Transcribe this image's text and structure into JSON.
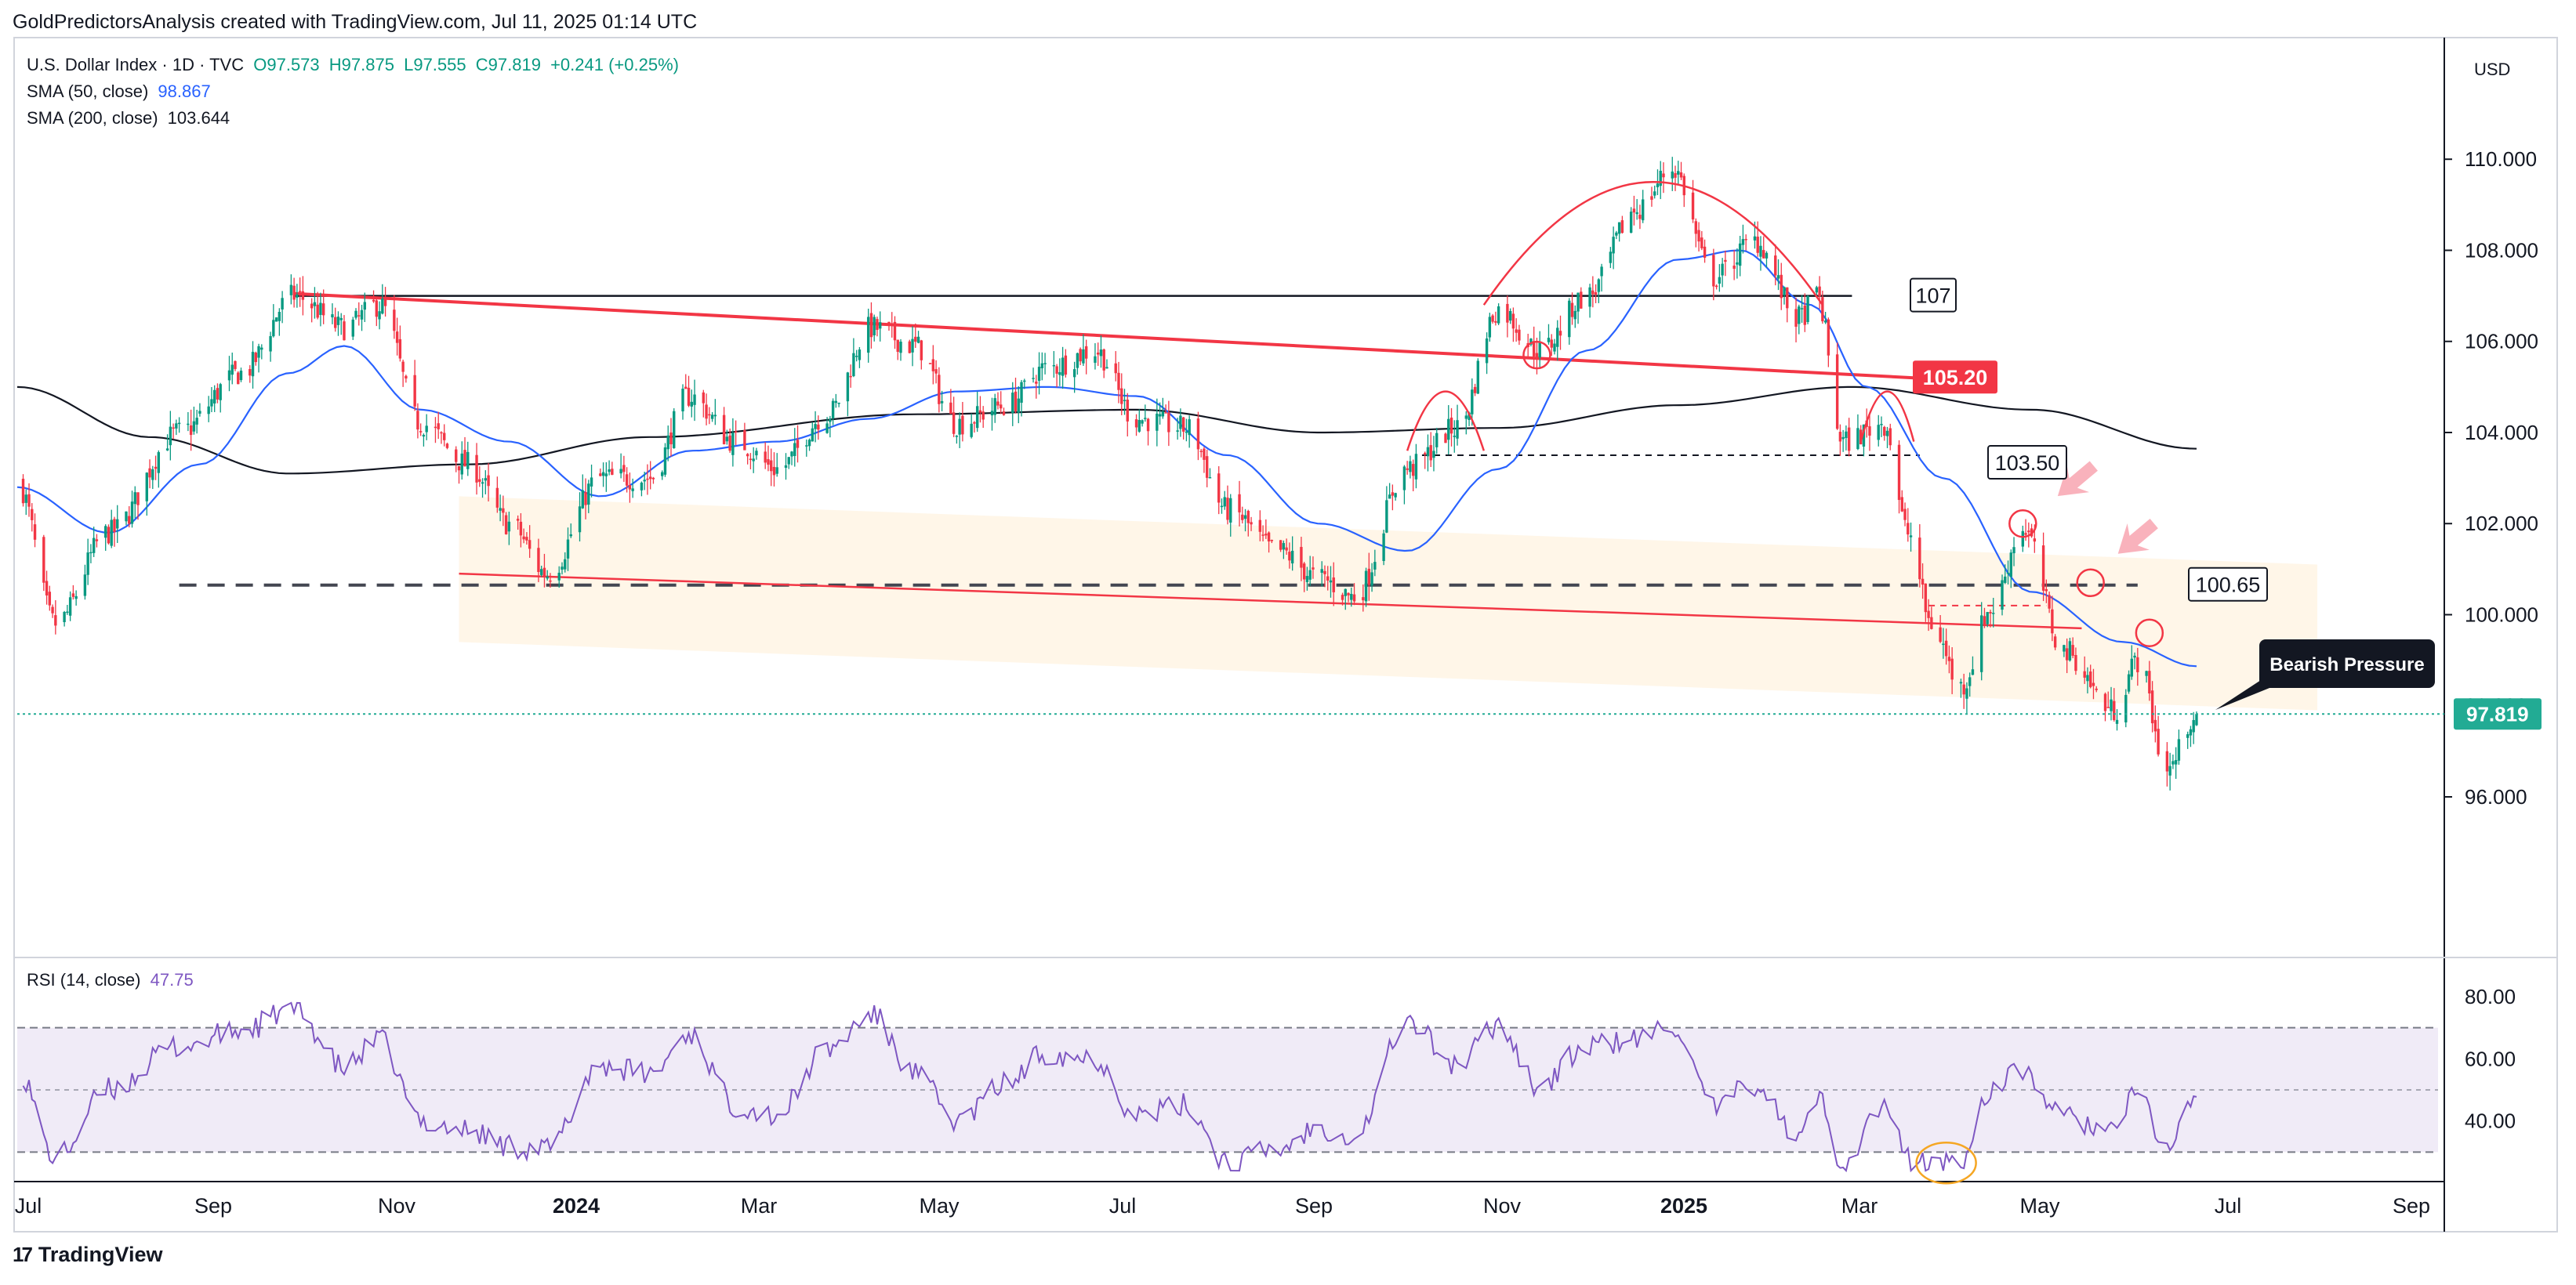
{
  "header": {
    "credit": "GoldPredictorsAnalysis created with TradingView.com, Jul 11, 2025 01:14 UTC"
  },
  "legend": {
    "symbol": "U.S. Dollar Index · 1D · TVC",
    "open": "O97.573",
    "high": "H97.875",
    "low": "L97.555",
    "close": "C97.819",
    "change": "+0.241 (+0.25%)",
    "sma50_label": "SMA (50, close)",
    "sma50_value": "98.867",
    "sma200_label": "SMA (200, close)",
    "sma200_value": "103.644",
    "rsi_label": "RSI (14, close)",
    "rsi_value": "47.75"
  },
  "price_axis": {
    "currency": "USD",
    "ticks": [
      "110.000",
      "108.000",
      "106.000",
      "104.000",
      "102.000",
      "100.000",
      "96.000"
    ],
    "last_price": "97.819",
    "partial_tick": "98.000"
  },
  "rsi_axis": {
    "ticks": [
      "80.00",
      "60.00",
      "40.00"
    ]
  },
  "time_axis": {
    "labels": [
      "Jul",
      "Sep",
      "Nov",
      "2024",
      "Mar",
      "May",
      "Jul",
      "Sep",
      "Nov",
      "2025",
      "Mar",
      "May",
      "Jul",
      "Sep"
    ]
  },
  "annotations": {
    "level_107": "107",
    "level_105_20": "105.20",
    "level_103_50": "103.50",
    "level_100_65": "100.65",
    "callout": "Bearish Pressure"
  },
  "colors": {
    "up": "#089981",
    "down": "#f23645",
    "sma50": "#2962ff",
    "sma200": "#131722",
    "rsi": "#7e57c2",
    "rsi_band": "#ede7f6",
    "channel": "#fff3e0",
    "trend_red": "#f23645",
    "last_price": "#22ab94"
  },
  "footer": {
    "brand": "TradingView"
  },
  "chart_data": {
    "type": "candlestick",
    "series_name": "U.S. Dollar Index · 1D · TVC",
    "ylim": [
      95,
      111
    ],
    "rsi_ylim": [
      22,
      82
    ],
    "close_keypoints": [
      [
        "2023-07-01",
        102.9
      ],
      [
        "2023-07-14",
        99.8
      ],
      [
        "2023-08-01",
        101.8
      ],
      [
        "2023-08-25",
        104.0
      ],
      [
        "2023-09-15",
        105.3
      ],
      [
        "2023-10-03",
        107.0
      ],
      [
        "2023-10-20",
        106.3
      ],
      [
        "2023-11-01",
        106.8
      ],
      [
        "2023-11-15",
        104.2
      ],
      [
        "2023-12-01",
        103.3
      ],
      [
        "2023-12-15",
        102.0
      ],
      [
        "2023-12-28",
        100.9
      ],
      [
        "2024-01-15",
        103.0
      ],
      [
        "2024-02-01",
        103.0
      ],
      [
        "2024-02-14",
        104.8
      ],
      [
        "2024-03-01",
        103.8
      ],
      [
        "2024-03-15",
        103.2
      ],
      [
        "2024-04-01",
        104.4
      ],
      [
        "2024-04-16",
        106.3
      ],
      [
        "2024-05-01",
        105.9
      ],
      [
        "2024-05-15",
        104.2
      ],
      [
        "2024-06-01",
        104.6
      ],
      [
        "2024-06-14",
        105.4
      ],
      [
        "2024-07-01",
        105.8
      ],
      [
        "2024-07-15",
        104.3
      ],
      [
        "2024-08-01",
        104.1
      ],
      [
        "2024-08-15",
        102.3
      ],
      [
        "2024-09-01",
        101.4
      ],
      [
        "2024-09-15",
        100.8
      ],
      [
        "2024-09-27",
        100.4
      ],
      [
        "2024-10-15",
        103.2
      ],
      [
        "2024-11-01",
        104.1
      ],
      [
        "2024-11-15",
        106.7
      ],
      [
        "2024-11-29",
        105.8
      ],
      [
        "2024-12-15",
        107.0
      ],
      [
        "2025-01-01",
        108.9
      ],
      [
        "2025-01-13",
        109.8
      ],
      [
        "2025-01-27",
        107.4
      ],
      [
        "2025-02-10",
        108.2
      ],
      [
        "2025-02-25",
        106.5
      ],
      [
        "2025-03-03",
        107.0
      ],
      [
        "2025-03-12",
        103.8
      ],
      [
        "2025-03-26",
        104.2
      ],
      [
        "2025-04-03",
        101.8
      ],
      [
        "2025-04-11",
        99.8
      ],
      [
        "2025-04-21",
        98.4
      ],
      [
        "2025-05-01",
        100.1
      ],
      [
        "2025-05-12",
        101.9
      ],
      [
        "2025-05-26",
        99.2
      ],
      [
        "2025-06-12",
        97.9
      ],
      [
        "2025-06-20",
        99.0
      ],
      [
        "2025-06-30",
        96.6
      ],
      [
        "2025-07-10",
        97.819
      ]
    ],
    "last_bar": {
      "date": "2025-07-10",
      "open": 97.573,
      "high": 97.875,
      "low": 97.555,
      "close": 97.819
    },
    "sma50_keypoints": [
      [
        "2023-07-01",
        102.8
      ],
      [
        "2023-08-01",
        101.8
      ],
      [
        "2023-09-01",
        103.3
      ],
      [
        "2023-10-01",
        105.3
      ],
      [
        "2023-10-20",
        105.9
      ],
      [
        "2023-11-15",
        104.5
      ],
      [
        "2023-12-15",
        103.8
      ],
      [
        "2024-01-15",
        102.6
      ],
      [
        "2024-02-15",
        103.6
      ],
      [
        "2024-03-15",
        103.8
      ],
      [
        "2024-04-15",
        104.3
      ],
      [
        "2024-05-15",
        104.9
      ],
      [
        "2024-06-15",
        105.0
      ],
      [
        "2024-07-15",
        104.8
      ],
      [
        "2024-08-15",
        103.5
      ],
      [
        "2024-09-15",
        102.0
      ],
      [
        "2024-10-15",
        101.4
      ],
      [
        "2024-11-15",
        103.2
      ],
      [
        "2024-12-15",
        105.8
      ],
      [
        "2025-01-15",
        107.8
      ],
      [
        "2025-02-05",
        108.0
      ],
      [
        "2025-03-01",
        106.8
      ],
      [
        "2025-03-20",
        105.0
      ],
      [
        "2025-04-15",
        103.0
      ],
      [
        "2025-05-15",
        100.5
      ],
      [
        "2025-06-15",
        99.4
      ],
      [
        "2025-07-10",
        98.867
      ]
    ],
    "sma200_keypoints": [
      [
        "2023-07-01",
        105.0
      ],
      [
        "2023-08-15",
        103.9
      ],
      [
        "2023-10-01",
        103.1
      ],
      [
        "2023-12-01",
        103.3
      ],
      [
        "2024-02-01",
        103.9
      ],
      [
        "2024-05-01",
        104.4
      ],
      [
        "2024-07-15",
        104.5
      ],
      [
        "2024-09-15",
        104.0
      ],
      [
        "2024-11-15",
        104.1
      ],
      [
        "2025-01-15",
        104.6
      ],
      [
        "2025-03-15",
        105.0
      ],
      [
        "2025-05-15",
        104.5
      ],
      [
        "2025-07-10",
        103.644
      ]
    ],
    "rsi_keypoints": [
      [
        "2023-07-01",
        57
      ],
      [
        "2023-07-14",
        28
      ],
      [
        "2023-08-01",
        50
      ],
      [
        "2023-08-25",
        64
      ],
      [
        "2023-09-15",
        69
      ],
      [
        "2023-10-03",
        76
      ],
      [
        "2023-10-20",
        57
      ],
      [
        "2023-11-01",
        66
      ],
      [
        "2023-11-15",
        40
      ],
      [
        "2023-12-01",
        37
      ],
      [
        "2023-12-15",
        32
      ],
      [
        "2023-12-28",
        31
      ],
      [
        "2024-01-15",
        58
      ],
      [
        "2024-02-01",
        55
      ],
      [
        "2024-02-14",
        68
      ],
      [
        "2024-03-01",
        45
      ],
      [
        "2024-03-15",
        42
      ],
      [
        "2024-04-01",
        63
      ],
      [
        "2024-04-16",
        74
      ],
      [
        "2024-05-01",
        55
      ],
      [
        "2024-05-15",
        40
      ],
      [
        "2024-06-01",
        52
      ],
      [
        "2024-06-14",
        62
      ],
      [
        "2024-07-01",
        60
      ],
      [
        "2024-07-15",
        42
      ],
      [
        "2024-08-01",
        45
      ],
      [
        "2024-08-15",
        27
      ],
      [
        "2024-09-01",
        31
      ],
      [
        "2024-09-15",
        38
      ],
      [
        "2024-09-27",
        35
      ],
      [
        "2024-10-15",
        72
      ],
      [
        "2024-11-01",
        58
      ],
      [
        "2024-11-15",
        71
      ],
      [
        "2024-11-29",
        51
      ],
      [
        "2024-12-15",
        64
      ],
      [
        "2025-01-01",
        66
      ],
      [
        "2025-01-13",
        71
      ],
      [
        "2025-01-27",
        44
      ],
      [
        "2025-02-10",
        52
      ],
      [
        "2025-02-25",
        34
      ],
      [
        "2025-03-03",
        48
      ],
      [
        "2025-03-12",
        27
      ],
      [
        "2025-03-26",
        45
      ],
      [
        "2025-04-03",
        28
      ],
      [
        "2025-04-11",
        26
      ],
      [
        "2025-04-21",
        27
      ],
      [
        "2025-05-01",
        50
      ],
      [
        "2025-05-12",
        56
      ],
      [
        "2025-05-26",
        41
      ],
      [
        "2025-06-12",
        37
      ],
      [
        "2025-06-20",
        49
      ],
      [
        "2025-06-30",
        31
      ],
      [
        "2025-07-10",
        47.75
      ]
    ],
    "levels": [
      {
        "label": "107",
        "value": 107.0,
        "from": "2023-10-03",
        "to": "2025-03-15"
      },
      {
        "label": "105.20",
        "value": 105.2,
        "from": "2025-03-10",
        "to": "2025-04-07"
      },
      {
        "label": "103.50",
        "value": 103.5,
        "from": "2024-10-20",
        "to": "2025-04-07"
      },
      {
        "label": "100.65",
        "value": 100.65,
        "from": "2023-08-25",
        "to": "2025-06-20"
      }
    ],
    "rsi_levels": [
      70,
      50,
      30
    ],
    "x_start": "2023-07-01",
    "x_end": "2025-09-30"
  }
}
